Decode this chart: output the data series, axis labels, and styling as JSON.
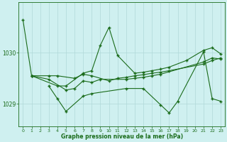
{
  "title": "Graphe pression niveau de la mer (hPa)",
  "background_color": "#cff0f0",
  "grid_color": "#b0d8d8",
  "line_color": "#1a6b1a",
  "text_color": "#1a6b1a",
  "xlim": [
    -0.5,
    23.5
  ],
  "ylim": [
    1028.55,
    1031.0
  ],
  "yticks": [
    1029,
    1030
  ],
  "xticks": [
    0,
    1,
    2,
    3,
    4,
    5,
    6,
    7,
    8,
    9,
    10,
    11,
    12,
    13,
    14,
    15,
    16,
    17,
    18,
    19,
    20,
    21,
    22,
    23
  ],
  "series": {
    "line1_x": [
      0,
      1,
      4,
      5,
      7,
      8,
      9,
      10,
      11,
      13,
      14,
      15,
      16,
      17,
      19,
      21,
      22,
      23
    ],
    "line1_y": [
      1030.65,
      1029.55,
      1029.35,
      1029.35,
      1029.6,
      1029.65,
      1030.15,
      1030.5,
      1029.95,
      1029.6,
      1029.62,
      1029.65,
      1029.68,
      1029.72,
      1029.85,
      1030.05,
      1030.1,
      1029.98
    ],
    "line2_x": [
      1,
      3,
      4,
      6,
      7,
      8,
      10,
      11,
      12,
      13,
      14,
      15,
      16,
      17,
      21,
      22,
      23
    ],
    "line2_y": [
      1029.55,
      1029.55,
      1029.55,
      1029.5,
      1029.58,
      1029.55,
      1029.45,
      1029.5,
      1029.52,
      1029.55,
      1029.57,
      1029.6,
      1029.62,
      1029.65,
      1029.78,
      1029.85,
      1029.9
    ],
    "line3_x": [
      1,
      3,
      5,
      6,
      7,
      8,
      9,
      12,
      13,
      14,
      15,
      16,
      21,
      22,
      23
    ],
    "line3_y": [
      1029.55,
      1029.48,
      1029.27,
      1029.3,
      1029.45,
      1029.42,
      1029.48,
      1029.48,
      1029.5,
      1029.52,
      1029.55,
      1029.58,
      1029.82,
      1029.9,
      1029.88
    ],
    "line4_x": [
      3,
      4,
      5,
      7,
      8,
      12,
      14,
      16,
      17,
      18,
      21,
      22,
      23
    ],
    "line4_y": [
      1029.35,
      1029.1,
      1028.85,
      1029.15,
      1029.2,
      1029.3,
      1029.3,
      1028.98,
      1028.82,
      1029.05,
      1030.02,
      1029.1,
      1029.05
    ]
  }
}
